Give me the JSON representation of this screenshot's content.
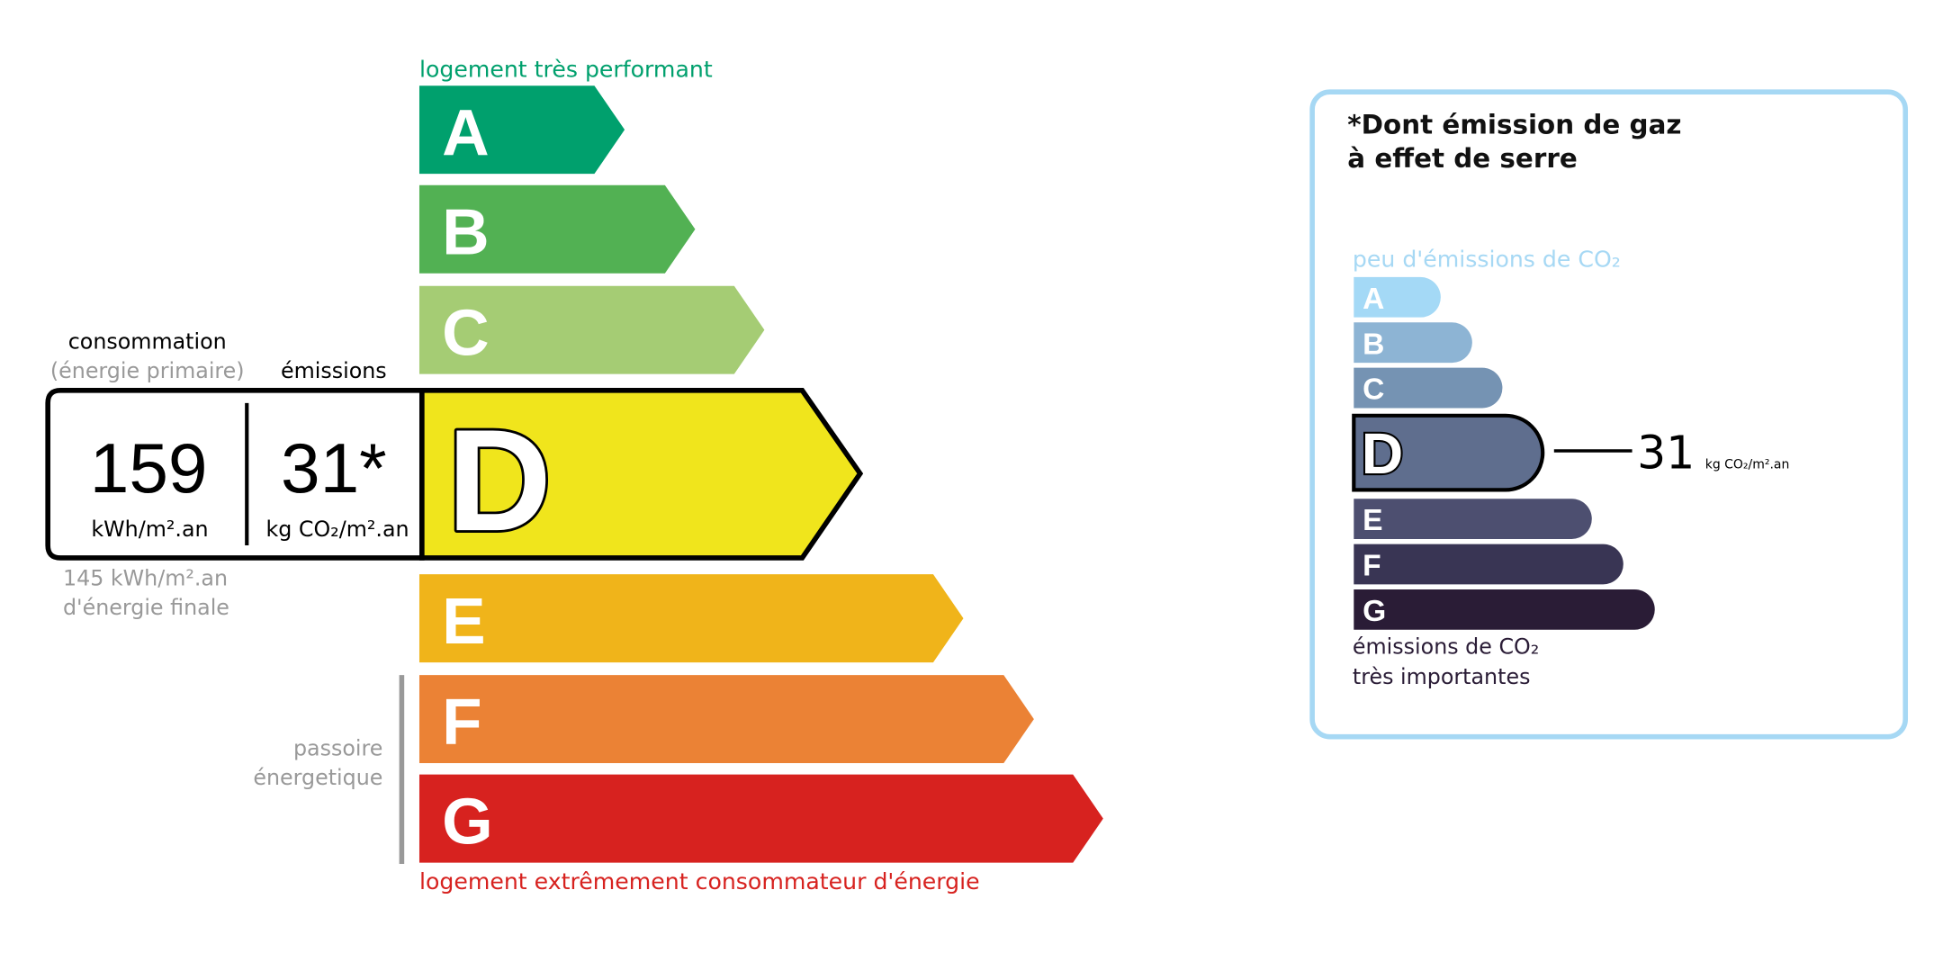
{
  "dpe": {
    "top_label": "logement très performant",
    "bottom_label": "logement extrêmement consommateur d'énergie",
    "passoire_line1": "passoire",
    "passoire_line2": "énergetique",
    "current_class": "D",
    "classes": [
      {
        "letter": "A",
        "color": "#00a06d"
      },
      {
        "letter": "B",
        "color": "#52b153"
      },
      {
        "letter": "C",
        "color": "#a5cc74"
      },
      {
        "letter": "D",
        "color": "#f0e51c"
      },
      {
        "letter": "E",
        "color": "#f0b41a"
      },
      {
        "letter": "F",
        "color": "#eb8235"
      },
      {
        "letter": "G",
        "color": "#d7221f"
      }
    ],
    "consumption_label": "consommation",
    "consumption_sublabel": "(énergie primaire)",
    "emissions_label": "émissions",
    "consumption_value": "159",
    "consumption_unit": "kWh/m².an",
    "emissions_value": "31*",
    "emissions_unit": "kg CO₂/m².an",
    "final_energy_line1": "145 kWh/m².an",
    "final_energy_line2": "d'énergie finale"
  },
  "ges": {
    "title_line1": "*Dont émission de gaz",
    "title_line2": "à effet de serre",
    "top_label": "peu d'émissions de CO₂",
    "bottom_label_line1": "émissions de CO₂",
    "bottom_label_line2": "très importantes",
    "current_class": "D",
    "value": "31",
    "unit": "kg CO₂/m².an",
    "border_color": "#a6d8f4",
    "classes": [
      {
        "letter": "A",
        "color": "#a4d9f6"
      },
      {
        "letter": "B",
        "color": "#8db4d4"
      },
      {
        "letter": "C",
        "color": "#7593b3"
      },
      {
        "letter": "D",
        "color": "#5f6e8e"
      },
      {
        "letter": "E",
        "color": "#4d4f70"
      },
      {
        "letter": "F",
        "color": "#393554"
      },
      {
        "letter": "G",
        "color": "#2a1c36"
      }
    ]
  }
}
